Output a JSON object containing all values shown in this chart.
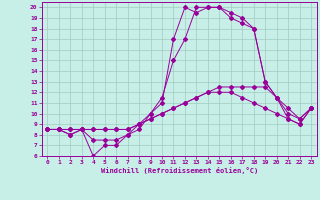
{
  "xlabel": "Windchill (Refroidissement éolien,°C)",
  "xlim": [
    -0.5,
    23.5
  ],
  "ylim": [
    6,
    20.5
  ],
  "yticks": [
    6,
    7,
    8,
    9,
    10,
    11,
    12,
    13,
    14,
    15,
    16,
    17,
    18,
    19,
    20
  ],
  "xticks": [
    0,
    1,
    2,
    3,
    4,
    5,
    6,
    7,
    8,
    9,
    10,
    11,
    12,
    13,
    14,
    15,
    16,
    17,
    18,
    19,
    20,
    21,
    22,
    23
  ],
  "bg_color": "#c8eee8",
  "line_color": "#990099",
  "grid_color": "#a0ccc0",
  "lines": [
    [
      8.5,
      8.5,
      8.0,
      8.5,
      6.0,
      7.0,
      7.0,
      8.0,
      8.5,
      10.0,
      11.0,
      17.0,
      20.0,
      19.5,
      20.0,
      20.0,
      19.5,
      19.0,
      18.0,
      13.0,
      11.5,
      10.0,
      9.5,
      10.5
    ],
    [
      8.5,
      8.5,
      8.0,
      8.5,
      7.5,
      7.5,
      7.5,
      8.0,
      9.0,
      10.0,
      11.5,
      15.0,
      17.0,
      20.0,
      20.0,
      20.0,
      19.0,
      18.5,
      18.0,
      13.0,
      11.5,
      9.5,
      9.0,
      10.5
    ],
    [
      8.5,
      8.5,
      8.5,
      8.5,
      8.5,
      8.5,
      8.5,
      8.5,
      9.0,
      9.5,
      10.0,
      10.5,
      11.0,
      11.5,
      12.0,
      12.5,
      12.5,
      12.5,
      12.5,
      12.5,
      11.5,
      10.5,
      9.5,
      10.5
    ],
    [
      8.5,
      8.5,
      8.5,
      8.5,
      8.5,
      8.5,
      8.5,
      8.5,
      9.0,
      9.5,
      10.0,
      10.5,
      11.0,
      11.5,
      12.0,
      12.0,
      12.0,
      11.5,
      11.0,
      10.5,
      10.0,
      9.5,
      9.0,
      10.5
    ]
  ]
}
